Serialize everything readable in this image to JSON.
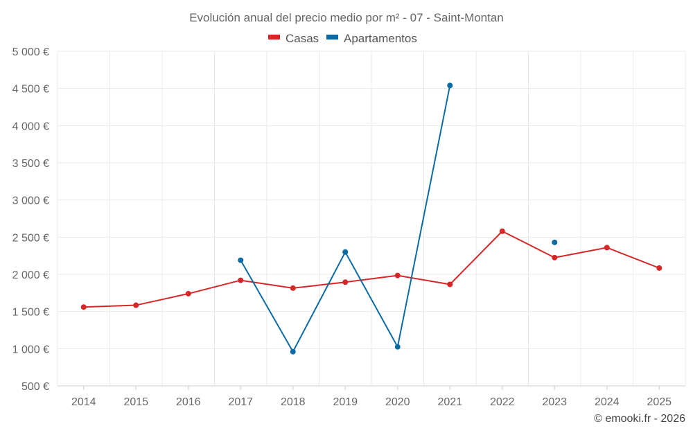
{
  "chart_data": {
    "type": "line",
    "title": "Evolución anual del precio medio por m² - 07 - Saint-Montan",
    "xlabel": "",
    "ylabel": "",
    "categories": [
      "2014",
      "2015",
      "2016",
      "2017",
      "2018",
      "2019",
      "2020",
      "2021",
      "2022",
      "2023",
      "2024",
      "2025"
    ],
    "ylim": [
      500,
      5000
    ],
    "ytick_values": [
      500,
      1000,
      1500,
      2000,
      2500,
      3000,
      3500,
      4000,
      4500,
      5000
    ],
    "ytick_labels": [
      "500 €",
      "1 000 €",
      "1 500 €",
      "2 000 €",
      "2 500 €",
      "3 000 €",
      "3 500 €",
      "4 000 €",
      "4 500 €",
      "5 000 €"
    ],
    "grid": true,
    "legend_position": "top-center",
    "series": [
      {
        "name": "Casas",
        "color": "#d62728",
        "values": [
          1560,
          1585,
          1740,
          1920,
          1815,
          1895,
          1985,
          1865,
          2580,
          2225,
          2360,
          2085
        ]
      },
      {
        "name": "Apartamentos",
        "color": "#0b6aa2",
        "values": [
          null,
          null,
          null,
          2190,
          960,
          2300,
          1025,
          4540,
          null,
          2430,
          null,
          null
        ]
      }
    ]
  },
  "credit": "© emooki.fr - 2026"
}
